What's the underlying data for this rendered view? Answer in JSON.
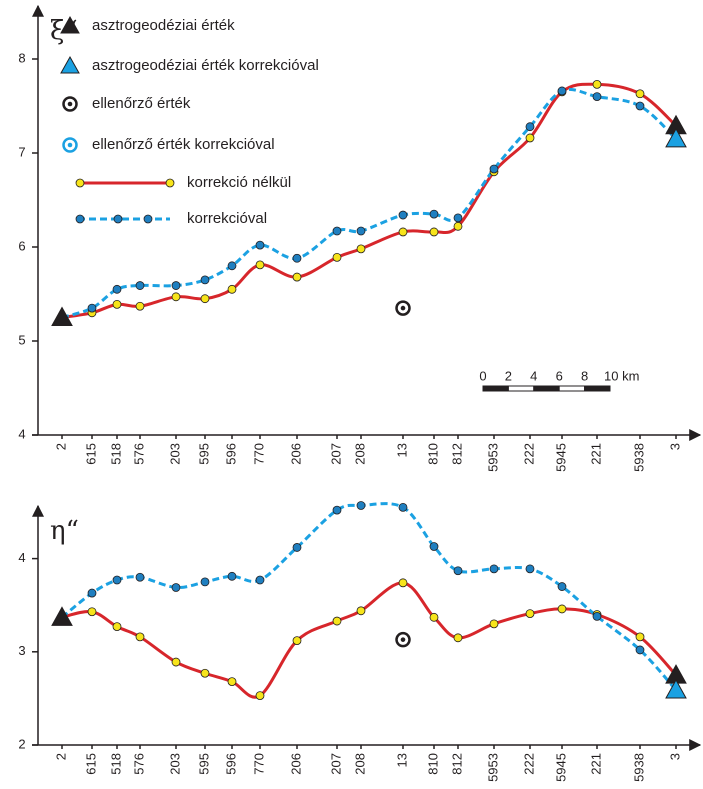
{
  "chart_data": [
    {
      "type": "line",
      "y_label": "ξ“",
      "legend": "upper left",
      "scale_bar": [
        "0",
        "2",
        "4",
        "6",
        "8",
        "10 km"
      ],
      "categories": [
        "2",
        "615",
        "518",
        "576",
        "203",
        "595",
        "596",
        "770",
        "206",
        "207",
        "208",
        "13",
        "810",
        "812",
        "5953",
        "222",
        "5945",
        "221",
        "5938",
        "3"
      ],
      "ylim": [
        4,
        8.5
      ],
      "yticks": [
        4,
        5,
        6,
        7,
        8
      ],
      "series": [
        {
          "name": "asztrogeodéziai érték",
          "marker": "triangle",
          "color": "#231f20",
          "values": [
            5.25,
            null,
            null,
            null,
            null,
            null,
            null,
            null,
            null,
            null,
            null,
            null,
            null,
            null,
            null,
            null,
            null,
            null,
            null,
            7.29
          ]
        },
        {
          "name": "asztrogeodéziai érték korrekcióval",
          "marker": "triangle",
          "color": "#1ba1e2",
          "values": [
            null,
            null,
            null,
            null,
            null,
            null,
            null,
            null,
            null,
            null,
            null,
            null,
            null,
            null,
            null,
            null,
            null,
            null,
            null,
            7.15
          ]
        },
        {
          "name": "ellenőrző érték",
          "marker": "ring",
          "color": "#231f20",
          "values": [
            null,
            null,
            null,
            null,
            null,
            null,
            null,
            null,
            null,
            null,
            null,
            5.35,
            null,
            null,
            null,
            null,
            null,
            null,
            null,
            null
          ]
        },
        {
          "name": "ellenőrző érték korrekcióval",
          "marker": "ring",
          "color": "#1ba1e2",
          "values": [
            null,
            null,
            null,
            null,
            null,
            null,
            null,
            null,
            null,
            null,
            null,
            null,
            null,
            null,
            null,
            null,
            null,
            null,
            null,
            null
          ]
        },
        {
          "name": "korrekció nélkül",
          "marker": "circle",
          "line": "solid",
          "color": "#d7262b",
          "marker_color": "#f7e41b",
          "values": [
            5.25,
            5.3,
            5.39,
            5.37,
            5.47,
            5.45,
            5.55,
            5.81,
            5.68,
            5.89,
            5.98,
            6.16,
            6.16,
            6.22,
            6.8,
            7.16,
            7.65,
            7.73,
            7.63,
            7.29
          ]
        },
        {
          "name": "korrekcióval",
          "marker": "circle",
          "line": "dashed",
          "color": "#1ba1e2",
          "marker_color": "#1f7fc0",
          "values": [
            5.25,
            5.35,
            5.55,
            5.59,
            5.59,
            5.65,
            5.8,
            6.02,
            5.88,
            6.17,
            6.17,
            6.34,
            6.35,
            6.31,
            6.83,
            7.28,
            7.66,
            7.6,
            7.5,
            7.15
          ]
        }
      ]
    },
    {
      "type": "line",
      "y_label": "η“",
      "categories": [
        "2",
        "615",
        "518",
        "576",
        "203",
        "595",
        "596",
        "770",
        "206",
        "207",
        "208",
        "13",
        "810",
        "812",
        "5953",
        "222",
        "5945",
        "221",
        "5938",
        "3"
      ],
      "ylim": [
        2,
        4.5
      ],
      "yticks": [
        2,
        3,
        4
      ],
      "series": [
        {
          "name": "asztrogeodéziai érték",
          "marker": "triangle",
          "color": "#231f20",
          "values": [
            3.37,
            null,
            null,
            null,
            null,
            null,
            null,
            null,
            null,
            null,
            null,
            null,
            null,
            null,
            null,
            null,
            null,
            null,
            null,
            2.75
          ]
        },
        {
          "name": "asztrogeodéziai érték korrekcióval",
          "marker": "triangle",
          "color": "#1ba1e2",
          "values": [
            null,
            null,
            null,
            null,
            null,
            null,
            null,
            null,
            null,
            null,
            null,
            null,
            null,
            null,
            null,
            null,
            null,
            null,
            null,
            2.59
          ]
        },
        {
          "name": "ellenőrző érték",
          "marker": "ring",
          "color": "#231f20",
          "values": [
            null,
            null,
            null,
            null,
            null,
            null,
            null,
            null,
            null,
            null,
            null,
            3.13,
            null,
            null,
            null,
            null,
            null,
            null,
            null,
            null
          ]
        },
        {
          "name": "korrekció nélkül",
          "marker": "circle",
          "line": "solid",
          "color": "#d7262b",
          "marker_color": "#f7e41b",
          "values": [
            3.37,
            3.43,
            3.27,
            3.16,
            2.89,
            2.77,
            2.68,
            2.53,
            3.12,
            3.33,
            3.44,
            3.74,
            3.37,
            3.15,
            3.3,
            3.41,
            3.46,
            3.4,
            3.16,
            2.75
          ]
        },
        {
          "name": "korrekcióval",
          "marker": "circle",
          "line": "dashed",
          "color": "#1ba1e2",
          "marker_color": "#1f7fc0",
          "values": [
            3.37,
            3.63,
            3.77,
            3.8,
            3.69,
            3.75,
            3.81,
            3.77,
            4.12,
            4.52,
            4.57,
            4.55,
            4.13,
            3.87,
            3.89,
            3.89,
            3.7,
            3.38,
            3.02,
            2.59
          ]
        }
      ]
    }
  ]
}
